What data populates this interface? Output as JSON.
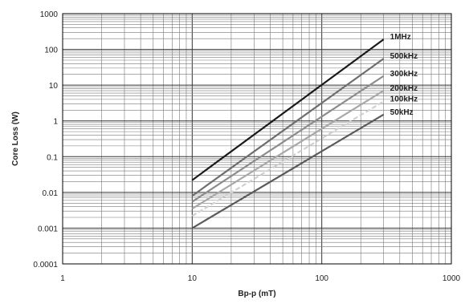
{
  "chart_data": {
    "type": "line",
    "title": "",
    "xlabel": "Bp-p (mT)",
    "ylabel": "Core Loss (W)",
    "x_scale": "log",
    "y_scale": "log",
    "xlim": [
      1,
      1000
    ],
    "ylim": [
      0.0001,
      1000
    ],
    "x_ticks": [
      "1",
      "10",
      "100",
      "1000"
    ],
    "y_ticks": [
      "0.0001",
      "0.001",
      "0.01",
      "0.1",
      "1",
      "10",
      "100",
      "1000"
    ],
    "grid": true,
    "series": [
      {
        "name": "1MHz",
        "x": [
          10,
          300
        ],
        "y": [
          0.022,
          190
        ],
        "color": "#1a1a1a",
        "dash": ""
      },
      {
        "name": "500kHz",
        "x": [
          10,
          300
        ],
        "y": [
          0.008,
          55
        ],
        "color": "#6e6e6e",
        "dash": ""
      },
      {
        "name": "300kHz",
        "x": [
          10,
          300
        ],
        "y": [
          0.0055,
          18
        ],
        "color": "#8c8c8c",
        "dash": ""
      },
      {
        "name": "200kHz",
        "x": [
          10,
          300
        ],
        "y": [
          0.0035,
          7
        ],
        "color": "#a8a8a8",
        "dash": ""
      },
      {
        "name": "100kHz",
        "x": [
          10,
          300
        ],
        "y": [
          0.0022,
          3.5
        ],
        "color": "#d0d0d0",
        "dash": "6,3"
      },
      {
        "name": "50kHz",
        "x": [
          10,
          300
        ],
        "y": [
          0.001,
          1.5
        ],
        "color": "#5a5a5a",
        "dash": ""
      }
    ]
  }
}
